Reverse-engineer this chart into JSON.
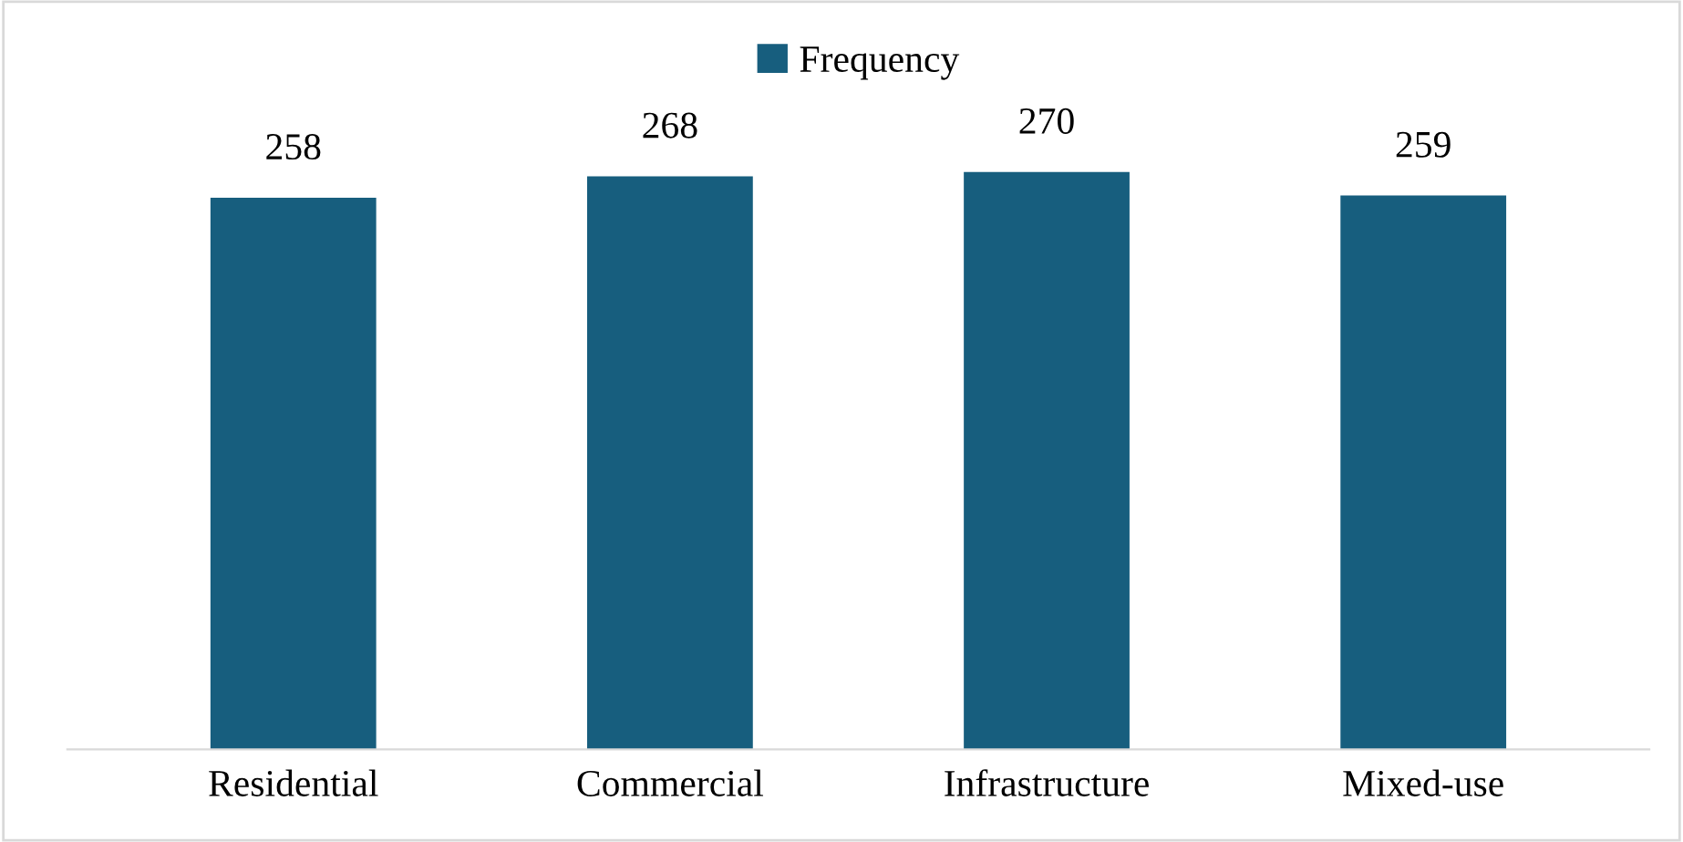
{
  "chart_data": {
    "type": "bar",
    "categories": [
      "Residential",
      "Commercial",
      "Infrastructure",
      "Mixed-use"
    ],
    "series": [
      {
        "name": "Frequency",
        "color": "#175e7e",
        "values": [
          258,
          268,
          270,
          259
        ]
      }
    ],
    "tick_labels": "x",
    "data_labels": true,
    "legend": "top",
    "grid": false
  }
}
